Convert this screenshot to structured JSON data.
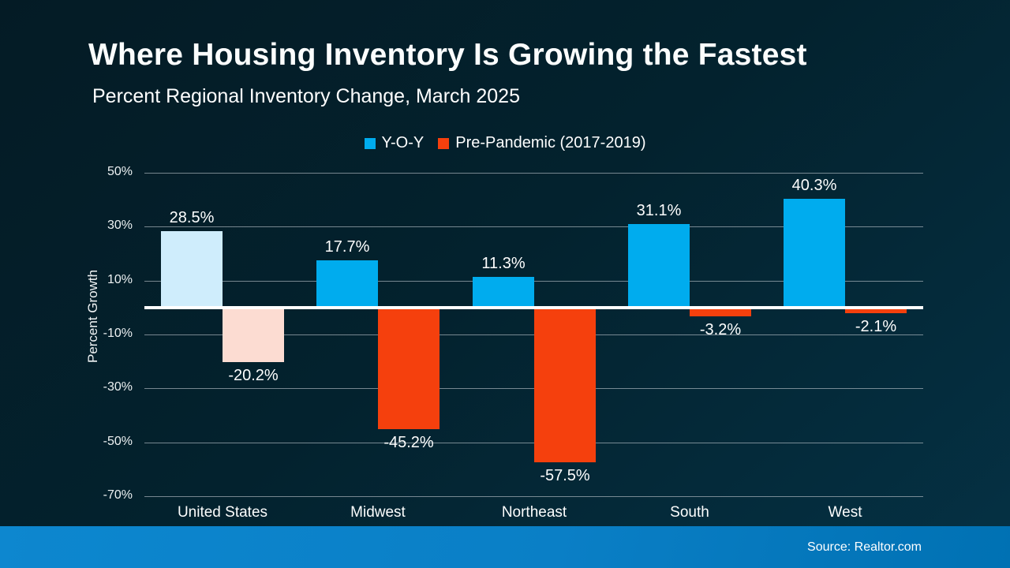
{
  "header": {
    "title": "Where Housing Inventory Is Growing the Fastest",
    "subtitle": "Percent Regional Inventory Change, March 2025"
  },
  "footer": {
    "source": "Source: Realtor.com"
  },
  "colors": {
    "yoy_bar": "#00ACEE",
    "yoy_bar_us": "#CFEDFC",
    "pre_bar": "#F5400D",
    "pre_bar_us": "#FCDCD2",
    "gridline": "rgba(196,204,210,0.6)",
    "zero_line": "#FFFFFF",
    "background_top": "#041B25",
    "background_bottom": "#053144",
    "footer_left": "#0D87CF",
    "footer_right": "#0071B3"
  },
  "chart_data": {
    "type": "bar",
    "title": "Where Housing Inventory Is Growing the Fastest",
    "subtitle": "Percent Regional Inventory Change, March 2025",
    "xlabel": "",
    "ylabel": "Percent Growth",
    "categories": [
      "United States",
      "Midwest",
      "Northeast",
      "South",
      "West"
    ],
    "series": [
      {
        "name": "Y-O-Y",
        "values": [
          28.5,
          17.7,
          11.3,
          31.1,
          40.3
        ],
        "labels": [
          "28.5%",
          "17.7%",
          "11.3%",
          "31.1%",
          "40.3%"
        ]
      },
      {
        "name": "Pre-Pandemic (2017-2019)",
        "values": [
          -20.2,
          -45.2,
          -57.5,
          -3.2,
          -2.1
        ],
        "labels": [
          "-20.2%",
          "-45.2%",
          "-57.5%",
          "-3.2%",
          "-2.1%"
        ]
      }
    ],
    "yticks": [
      50,
      30,
      10,
      -10,
      -30,
      -50,
      -70
    ],
    "ytick_labels": [
      "50%",
      "30%",
      "10%",
      "-10%",
      "-30%",
      "-50%",
      "-70%"
    ],
    "ylim": [
      -70,
      50
    ],
    "grid": true,
    "legend_position": "top",
    "highlighted_category": "United States"
  }
}
